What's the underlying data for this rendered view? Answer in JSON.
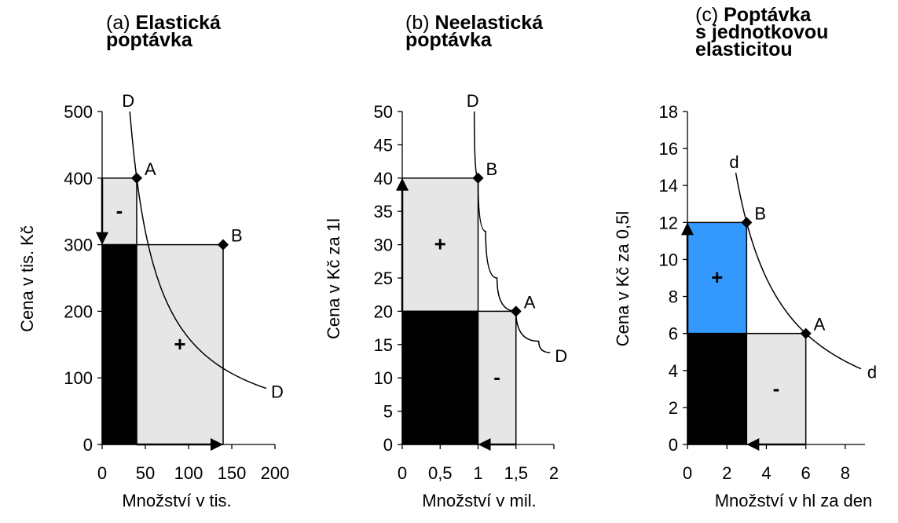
{
  "colors": {
    "gray": "#e6e6e6",
    "black": "#000000",
    "blue": "#3399ff",
    "axis": "#000000"
  },
  "chart_data": [
    {
      "type": "area",
      "panel_label": "(a)",
      "title_lines": [
        "Elastická",
        "poptávka"
      ],
      "xlabel": "Množství v tis.",
      "ylabel": "Cena v tis. Kč",
      "xlim": [
        0,
        200
      ],
      "ylim": [
        0,
        500
      ],
      "xticks": [
        0,
        50,
        100,
        150,
        200
      ],
      "yticks": [
        0,
        100,
        200,
        300,
        400,
        500
      ],
      "xtick_labels": [
        "0",
        "50",
        "100",
        "150",
        "200"
      ],
      "ytick_labels": [
        "0",
        "100",
        "200",
        "300",
        "400",
        "500"
      ],
      "curve_label": "D",
      "points": [
        {
          "label": "A",
          "x": 40,
          "y": 400
        },
        {
          "label": "B",
          "x": 140,
          "y": 300
        }
      ],
      "rects": [
        {
          "x0": 0,
          "x1": 40,
          "y0": 300,
          "y1": 400,
          "fill": "gray",
          "sign": "-"
        },
        {
          "x0": 0,
          "x1": 40,
          "y0": 0,
          "y1": 300,
          "fill": "black",
          "sign": ""
        },
        {
          "x0": 40,
          "x1": 140,
          "y0": 0,
          "y1": 300,
          "fill": "gray",
          "sign": "+"
        }
      ],
      "arrows": [
        {
          "axis": "y",
          "from": 400,
          "to": 300,
          "at": 0
        },
        {
          "axis": "x",
          "from": 40,
          "to": 140,
          "at": 0
        }
      ],
      "curve_k": 16000,
      "curve_range": [
        32,
        190
      ]
    },
    {
      "type": "area",
      "panel_label": "(b)",
      "title_lines": [
        "Neelastická",
        "poptávka"
      ],
      "xlabel": "Množství v mil.",
      "ylabel": "Cena v Kč za 1l",
      "xlim": [
        0,
        2
      ],
      "ylim": [
        0,
        50
      ],
      "xticks": [
        0,
        0.5,
        1,
        1.5,
        2
      ],
      "yticks": [
        0,
        5,
        10,
        15,
        20,
        25,
        30,
        35,
        40,
        45,
        50
      ],
      "xtick_labels": [
        "0",
        "0,5",
        "1",
        "1,5",
        "2"
      ],
      "ytick_labels": [
        "0",
        "5",
        "10",
        "15",
        "20",
        "25",
        "30",
        "35",
        "40",
        "45",
        "50"
      ],
      "curve_label": "D",
      "points": [
        {
          "label": "B",
          "x": 1,
          "y": 40
        },
        {
          "label": "A",
          "x": 1.5,
          "y": 20
        }
      ],
      "rects": [
        {
          "x0": 0,
          "x1": 1,
          "y0": 20,
          "y1": 40,
          "fill": "gray",
          "sign": "+"
        },
        {
          "x0": 0,
          "x1": 1,
          "y0": 0,
          "y1": 20,
          "fill": "black",
          "sign": ""
        },
        {
          "x0": 1,
          "x1": 1.5,
          "y0": 0,
          "y1": 20,
          "fill": "gray",
          "sign": "-"
        }
      ],
      "arrows": [
        {
          "axis": "y",
          "from": 20,
          "to": 40,
          "at": 0
        },
        {
          "axis": "x",
          "from": 1.5,
          "to": 1,
          "at": 0
        }
      ],
      "curve_points": [
        [
          0.95,
          50
        ],
        [
          1,
          40
        ],
        [
          1.1,
          32
        ],
        [
          1.25,
          25
        ],
        [
          1.5,
          20
        ],
        [
          1.8,
          15.5
        ],
        [
          1.95,
          13.8
        ]
      ]
    },
    {
      "type": "area",
      "panel_label": "(c)",
      "title_lines": [
        "Poptávka",
        "s jednotkovou",
        "elasticitou"
      ],
      "xlabel": "Množství v hl za den",
      "ylabel": "Cena v Kč za 0,5l",
      "xlim": [
        0,
        9
      ],
      "ylim": [
        0,
        18
      ],
      "xticks": [
        0,
        2,
        4,
        6,
        8
      ],
      "yticks": [
        0,
        2,
        4,
        6,
        8,
        10,
        12,
        14,
        16,
        18
      ],
      "xtick_labels": [
        "0",
        "2",
        "4",
        "6",
        "8"
      ],
      "ytick_labels": [
        "0",
        "2",
        "4",
        "6",
        "8",
        "10",
        "12",
        "14",
        "16",
        "18"
      ],
      "curve_label": "d",
      "points": [
        {
          "label": "B",
          "x": 3,
          "y": 12
        },
        {
          "label": "A",
          "x": 6,
          "y": 6
        }
      ],
      "rects": [
        {
          "x0": 0,
          "x1": 3,
          "y0": 6,
          "y1": 12,
          "fill": "blue",
          "sign": "+"
        },
        {
          "x0": 0,
          "x1": 3,
          "y0": 0,
          "y1": 6,
          "fill": "black",
          "sign": ""
        },
        {
          "x0": 3,
          "x1": 6,
          "y0": 0,
          "y1": 6,
          "fill": "gray",
          "sign": "-"
        }
      ],
      "arrows": [
        {
          "axis": "y",
          "from": 6,
          "to": 12,
          "at": 0
        },
        {
          "axis": "x",
          "from": 6,
          "to": 3,
          "at": 0
        }
      ],
      "curve_k": 36,
      "curve_range": [
        2.45,
        8.8
      ]
    }
  ]
}
